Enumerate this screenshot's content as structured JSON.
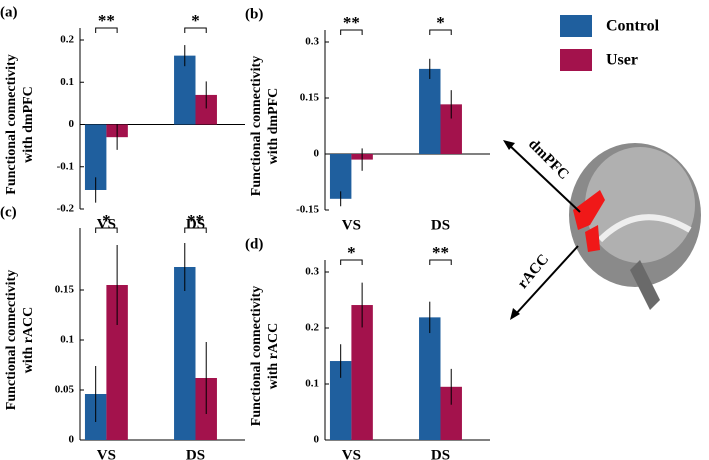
{
  "legend": [
    {
      "name": "Control",
      "color": "#1f5f9e"
    },
    {
      "name": "User",
      "color": "#a3124c"
    }
  ],
  "brain": {
    "labels": [
      "dmPFC",
      "rACC"
    ]
  },
  "chart_data": [
    {
      "type": "bar",
      "panel_label": "(a)",
      "ylabel": [
        "Functional connectivity",
        "with dmPFC"
      ],
      "categories": [
        "VS",
        "DS"
      ],
      "significance": [
        "**",
        "*"
      ],
      "series": [
        {
          "values": [
            -0.155,
            0.163
          ],
          "errors": [
            0.03,
            0.025
          ]
        },
        {
          "values": [
            -0.03,
            0.07
          ],
          "errors": [
            0.03,
            0.032
          ]
        }
      ],
      "ylim": [
        -0.2,
        0.2
      ],
      "yticks": [
        -0.2,
        -0.1,
        0,
        0.1,
        0.2
      ]
    },
    {
      "type": "bar",
      "panel_label": "(b)",
      "ylabel": [
        "Functional connectivity",
        "with dmPFC"
      ],
      "categories": [
        "VS",
        "DS"
      ],
      "significance": [
        "**",
        "*"
      ],
      "series": [
        {
          "values": [
            -0.12,
            0.228
          ],
          "errors": [
            0.02,
            0.027
          ]
        },
        {
          "values": [
            -0.015,
            0.133
          ],
          "errors": [
            0.03,
            0.038
          ]
        }
      ],
      "ylim": [
        -0.15,
        0.3
      ],
      "yticks": [
        -0.15,
        0,
        0.15,
        0.3
      ]
    },
    {
      "type": "bar",
      "panel_label": "(c)",
      "ylabel": [
        "Functional connectivity",
        "with rACC"
      ],
      "categories": [
        "VS",
        "DS"
      ],
      "significance": [
        "*",
        "**"
      ],
      "series": [
        {
          "values": [
            0.046,
            0.173
          ],
          "errors": [
            0.028,
            0.024
          ]
        },
        {
          "values": [
            0.155,
            0.062
          ],
          "errors": [
            0.04,
            0.036
          ]
        }
      ],
      "ylim": [
        0,
        0.2
      ],
      "yticks": [
        0,
        0.05,
        0.1,
        0.15
      ]
    },
    {
      "type": "bar",
      "panel_label": "(d)",
      "ylabel": [
        "Functional connectivity",
        "with rACC"
      ],
      "categories": [
        "VS",
        "DS"
      ],
      "significance": [
        "*",
        "**"
      ],
      "series": [
        {
          "values": [
            0.141,
            0.219
          ],
          "errors": [
            0.03,
            0.028
          ]
        },
        {
          "values": [
            0.241,
            0.095
          ],
          "errors": [
            0.04,
            0.032
          ]
        }
      ],
      "ylim": [
        0,
        0.3
      ],
      "yticks": [
        0,
        0.1,
        0.2,
        0.3
      ]
    }
  ]
}
